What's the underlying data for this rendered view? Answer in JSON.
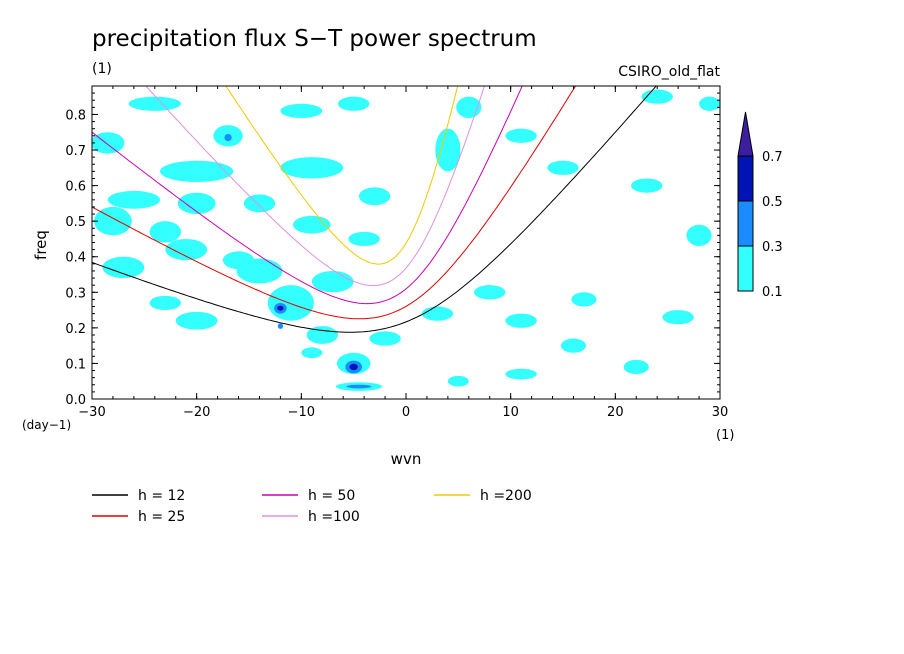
{
  "chart_data": {
    "type": "heatmap",
    "title": "precipitation flux S−T power spectrum",
    "subtitle": "(1)",
    "model": "CSIRO_old_flat",
    "xlabel": "wvn",
    "ylabel": "freq",
    "x_unit": "(1)",
    "y_unit": "(day−1)",
    "xlim": [
      -30,
      30
    ],
    "ylim": [
      0,
      0.88
    ],
    "x_ticks": [
      {
        "value": -30,
        "label": "−30"
      },
      {
        "value": -20,
        "label": "−20"
      },
      {
        "value": -10,
        "label": "−10"
      },
      {
        "value": 0,
        "label": "0"
      },
      {
        "value": 10,
        "label": "10"
      },
      {
        "value": 20,
        "label": "20"
      },
      {
        "value": 30,
        "label": "30"
      }
    ],
    "y_ticks": [
      {
        "value": 0.0,
        "label": "0.0"
      },
      {
        "value": 0.1,
        "label": "0.1"
      },
      {
        "value": 0.2,
        "label": "0.2"
      },
      {
        "value": 0.3,
        "label": "0.3"
      },
      {
        "value": 0.4,
        "label": "0.4"
      },
      {
        "value": 0.5,
        "label": "0.5"
      },
      {
        "value": 0.6,
        "label": "0.6"
      },
      {
        "value": 0.7,
        "label": "0.7"
      },
      {
        "value": 0.8,
        "label": "0.8"
      }
    ],
    "colorbar": {
      "levels": [
        {
          "value": 0.1,
          "label": "0.1",
          "color": "#33ffff"
        },
        {
          "value": 0.3,
          "label": "0.3",
          "color": "#1a8cff"
        },
        {
          "value": 0.5,
          "label": "0.5",
          "color": "#0014b4"
        },
        {
          "value": 0.7,
          "label": "0.7",
          "color": "#3c1ea0"
        }
      ]
    },
    "contour_blobs": [
      {
        "x": -28.5,
        "y": 0.72,
        "rx": 1.6,
        "ry": 0.03,
        "level": 0.1
      },
      {
        "x": -24,
        "y": 0.83,
        "rx": 2.5,
        "ry": 0.02,
        "level": 0.1
      },
      {
        "x": -20,
        "y": 0.64,
        "rx": 3.5,
        "ry": 0.03,
        "level": 0.1
      },
      {
        "x": -17,
        "y": 0.74,
        "rx": 1.4,
        "ry": 0.03,
        "level": 0.1
      },
      {
        "x": -17,
        "y": 0.735,
        "rx": 0.35,
        "ry": 0.01,
        "level": 0.3
      },
      {
        "x": -10,
        "y": 0.81,
        "rx": 2.0,
        "ry": 0.02,
        "level": 0.1
      },
      {
        "x": -9,
        "y": 0.65,
        "rx": 3.0,
        "ry": 0.03,
        "level": 0.1
      },
      {
        "x": -5,
        "y": 0.83,
        "rx": 1.5,
        "ry": 0.02,
        "level": 0.1
      },
      {
        "x": -28,
        "y": 0.5,
        "rx": 1.8,
        "ry": 0.04,
        "level": 0.1
      },
      {
        "x": -26,
        "y": 0.56,
        "rx": 2.5,
        "ry": 0.025,
        "level": 0.1
      },
      {
        "x": -23,
        "y": 0.47,
        "rx": 1.5,
        "ry": 0.03,
        "level": 0.1
      },
      {
        "x": -20,
        "y": 0.55,
        "rx": 1.8,
        "ry": 0.03,
        "level": 0.1
      },
      {
        "x": -14,
        "y": 0.55,
        "rx": 1.5,
        "ry": 0.025,
        "level": 0.1
      },
      {
        "x": -9,
        "y": 0.49,
        "rx": 1.8,
        "ry": 0.025,
        "level": 0.1
      },
      {
        "x": -3,
        "y": 0.57,
        "rx": 1.5,
        "ry": 0.025,
        "level": 0.1
      },
      {
        "x": 4,
        "y": 0.7,
        "rx": 1.2,
        "ry": 0.06,
        "level": 0.1
      },
      {
        "x": 6,
        "y": 0.82,
        "rx": 1.2,
        "ry": 0.03,
        "level": 0.1
      },
      {
        "x": 11,
        "y": 0.74,
        "rx": 1.5,
        "ry": 0.02,
        "level": 0.1
      },
      {
        "x": 15,
        "y": 0.65,
        "rx": 1.5,
        "ry": 0.02,
        "level": 0.1
      },
      {
        "x": 23,
        "y": 0.6,
        "rx": 1.5,
        "ry": 0.02,
        "level": 0.1
      },
      {
        "x": 24,
        "y": 0.85,
        "rx": 1.5,
        "ry": 0.02,
        "level": 0.1
      },
      {
        "x": 29,
        "y": 0.83,
        "rx": 1.0,
        "ry": 0.02,
        "level": 0.1
      },
      {
        "x": -27,
        "y": 0.37,
        "rx": 2.0,
        "ry": 0.03,
        "level": 0.1
      },
      {
        "x": -21,
        "y": 0.42,
        "rx": 2.0,
        "ry": 0.03,
        "level": 0.1
      },
      {
        "x": -16,
        "y": 0.39,
        "rx": 1.5,
        "ry": 0.025,
        "level": 0.1
      },
      {
        "x": -14,
        "y": 0.36,
        "rx": 2.2,
        "ry": 0.035,
        "level": 0.1
      },
      {
        "x": -11,
        "y": 0.27,
        "rx": 2.2,
        "ry": 0.05,
        "level": 0.1
      },
      {
        "x": -12,
        "y": 0.255,
        "rx": 0.6,
        "ry": 0.015,
        "level": 0.3
      },
      {
        "x": -12,
        "y": 0.255,
        "rx": 0.3,
        "ry": 0.007,
        "level": 0.5
      },
      {
        "x": -12,
        "y": 0.205,
        "rx": 0.25,
        "ry": 0.008,
        "level": 0.3
      },
      {
        "x": -7,
        "y": 0.33,
        "rx": 2.0,
        "ry": 0.03,
        "level": 0.1
      },
      {
        "x": -4,
        "y": 0.45,
        "rx": 1.5,
        "ry": 0.02,
        "level": 0.1
      },
      {
        "x": -20,
        "y": 0.22,
        "rx": 2.0,
        "ry": 0.025,
        "level": 0.1
      },
      {
        "x": -23,
        "y": 0.27,
        "rx": 1.5,
        "ry": 0.02,
        "level": 0.1
      },
      {
        "x": -8,
        "y": 0.18,
        "rx": 1.5,
        "ry": 0.025,
        "level": 0.1
      },
      {
        "x": -5,
        "y": 0.1,
        "rx": 1.6,
        "ry": 0.03,
        "level": 0.1
      },
      {
        "x": -5,
        "y": 0.09,
        "rx": 0.8,
        "ry": 0.018,
        "level": 0.3
      },
      {
        "x": -5,
        "y": 0.09,
        "rx": 0.4,
        "ry": 0.009,
        "level": 0.5
      },
      {
        "x": -4.5,
        "y": 0.035,
        "rx": 2.2,
        "ry": 0.012,
        "level": 0.1
      },
      {
        "x": -4.5,
        "y": 0.035,
        "rx": 1.2,
        "ry": 0.005,
        "level": 0.3
      },
      {
        "x": -9,
        "y": 0.13,
        "rx": 1.0,
        "ry": 0.015,
        "level": 0.1
      },
      {
        "x": 3,
        "y": 0.24,
        "rx": 1.5,
        "ry": 0.02,
        "level": 0.1
      },
      {
        "x": 8,
        "y": 0.3,
        "rx": 1.5,
        "ry": 0.02,
        "level": 0.1
      },
      {
        "x": 11,
        "y": 0.22,
        "rx": 1.5,
        "ry": 0.02,
        "level": 0.1
      },
      {
        "x": 17,
        "y": 0.28,
        "rx": 1.2,
        "ry": 0.02,
        "level": 0.1
      },
      {
        "x": 16,
        "y": 0.15,
        "rx": 1.2,
        "ry": 0.02,
        "level": 0.1
      },
      {
        "x": 22,
        "y": 0.09,
        "rx": 1.2,
        "ry": 0.02,
        "level": 0.1
      },
      {
        "x": 26,
        "y": 0.23,
        "rx": 1.5,
        "ry": 0.02,
        "level": 0.1
      },
      {
        "x": 28,
        "y": 0.46,
        "rx": 1.2,
        "ry": 0.03,
        "level": 0.1
      },
      {
        "x": 5,
        "y": 0.05,
        "rx": 1.0,
        "ry": 0.015,
        "level": 0.1
      },
      {
        "x": 11,
        "y": 0.07,
        "rx": 1.5,
        "ry": 0.015,
        "level": 0.1
      },
      {
        "x": -2,
        "y": 0.17,
        "rx": 1.5,
        "ry": 0.02,
        "level": 0.1
      }
    ],
    "series": [
      {
        "name": "h = 12",
        "h": 12,
        "color": "#000000"
      },
      {
        "name": "h = 25",
        "h": 25,
        "color": "#e00000"
      },
      {
        "name": "h = 50",
        "h": 50,
        "color": "#cc00b4"
      },
      {
        "name": "h =100",
        "h": 100,
        "color": "#e090e0"
      },
      {
        "name": "h =200",
        "h": 200,
        "color": "#f0c800"
      }
    ]
  }
}
